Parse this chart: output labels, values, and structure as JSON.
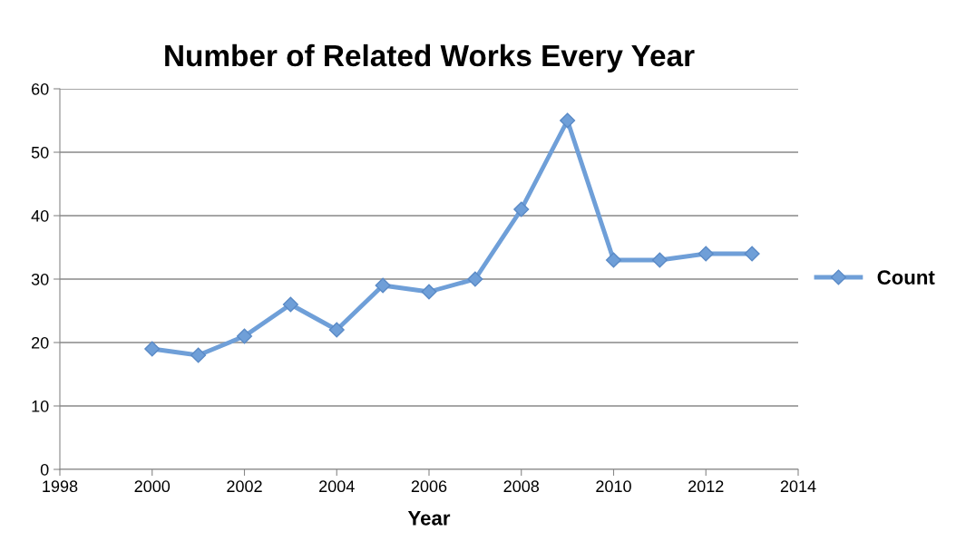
{
  "chart_data": {
    "type": "line",
    "title": "Number of Related Works Every Year",
    "xlabel": "Year",
    "x": [
      2000,
      2001,
      2002,
      2003,
      2004,
      2005,
      2006,
      2007,
      2008,
      2009,
      2010,
      2011,
      2012,
      2013
    ],
    "series": [
      {
        "name": "Count",
        "color": "#6f9fd8",
        "values": [
          19,
          18,
          21,
          26,
          22,
          29,
          28,
          30,
          41,
          55,
          33,
          33,
          34,
          34
        ]
      }
    ],
    "xlim": [
      1998,
      2014
    ],
    "xticks": [
      1998,
      2000,
      2002,
      2004,
      2006,
      2008,
      2010,
      2012,
      2014
    ],
    "ylim": [
      0,
      60
    ],
    "yticks": [
      0,
      10,
      20,
      30,
      40,
      50,
      60
    ],
    "grid": "y",
    "legend": "right",
    "marker": "diamond",
    "line_style": "solid"
  }
}
